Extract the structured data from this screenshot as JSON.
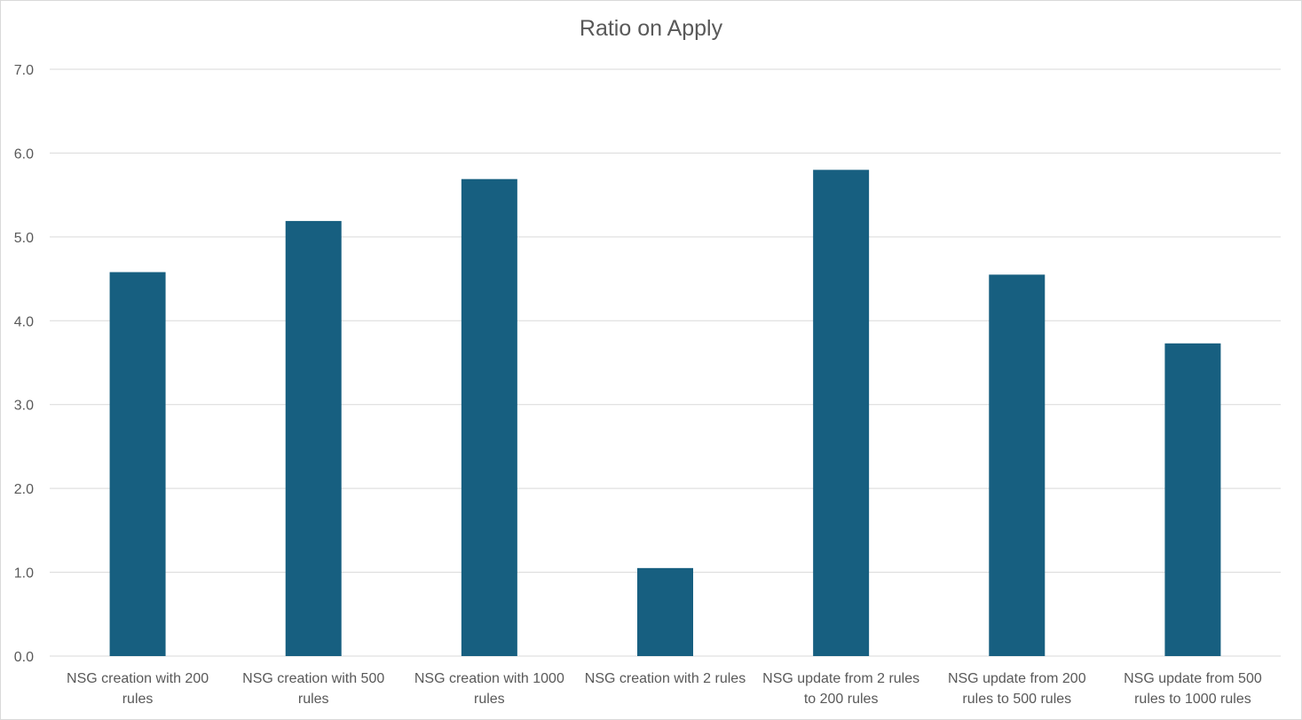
{
  "chart_data": {
    "type": "bar",
    "title": "Ratio on Apply",
    "xlabel": "",
    "ylabel": "",
    "categories": [
      [
        "NSG creation with 200",
        "rules"
      ],
      [
        "NSG creation with 500",
        "rules"
      ],
      [
        "NSG creation with 1000",
        "rules"
      ],
      [
        "NSG creation with 2 rules"
      ],
      [
        "NSG update from 2 rules",
        "to 200 rules"
      ],
      [
        "NSG update from 200",
        "rules to 500 rules"
      ],
      [
        "NSG update from 500",
        "rules to 1000 rules"
      ]
    ],
    "values": [
      4.58,
      5.19,
      5.69,
      1.05,
      5.8,
      4.55,
      3.73
    ],
    "ylim": [
      0,
      7
    ],
    "yticks": [
      "0.0",
      "1.0",
      "2.0",
      "3.0",
      "4.0",
      "5.0",
      "6.0",
      "7.0"
    ],
    "grid": true,
    "colors": {
      "bar": "#175f80",
      "grid": "#d9d9d9",
      "text": "#595959"
    }
  }
}
